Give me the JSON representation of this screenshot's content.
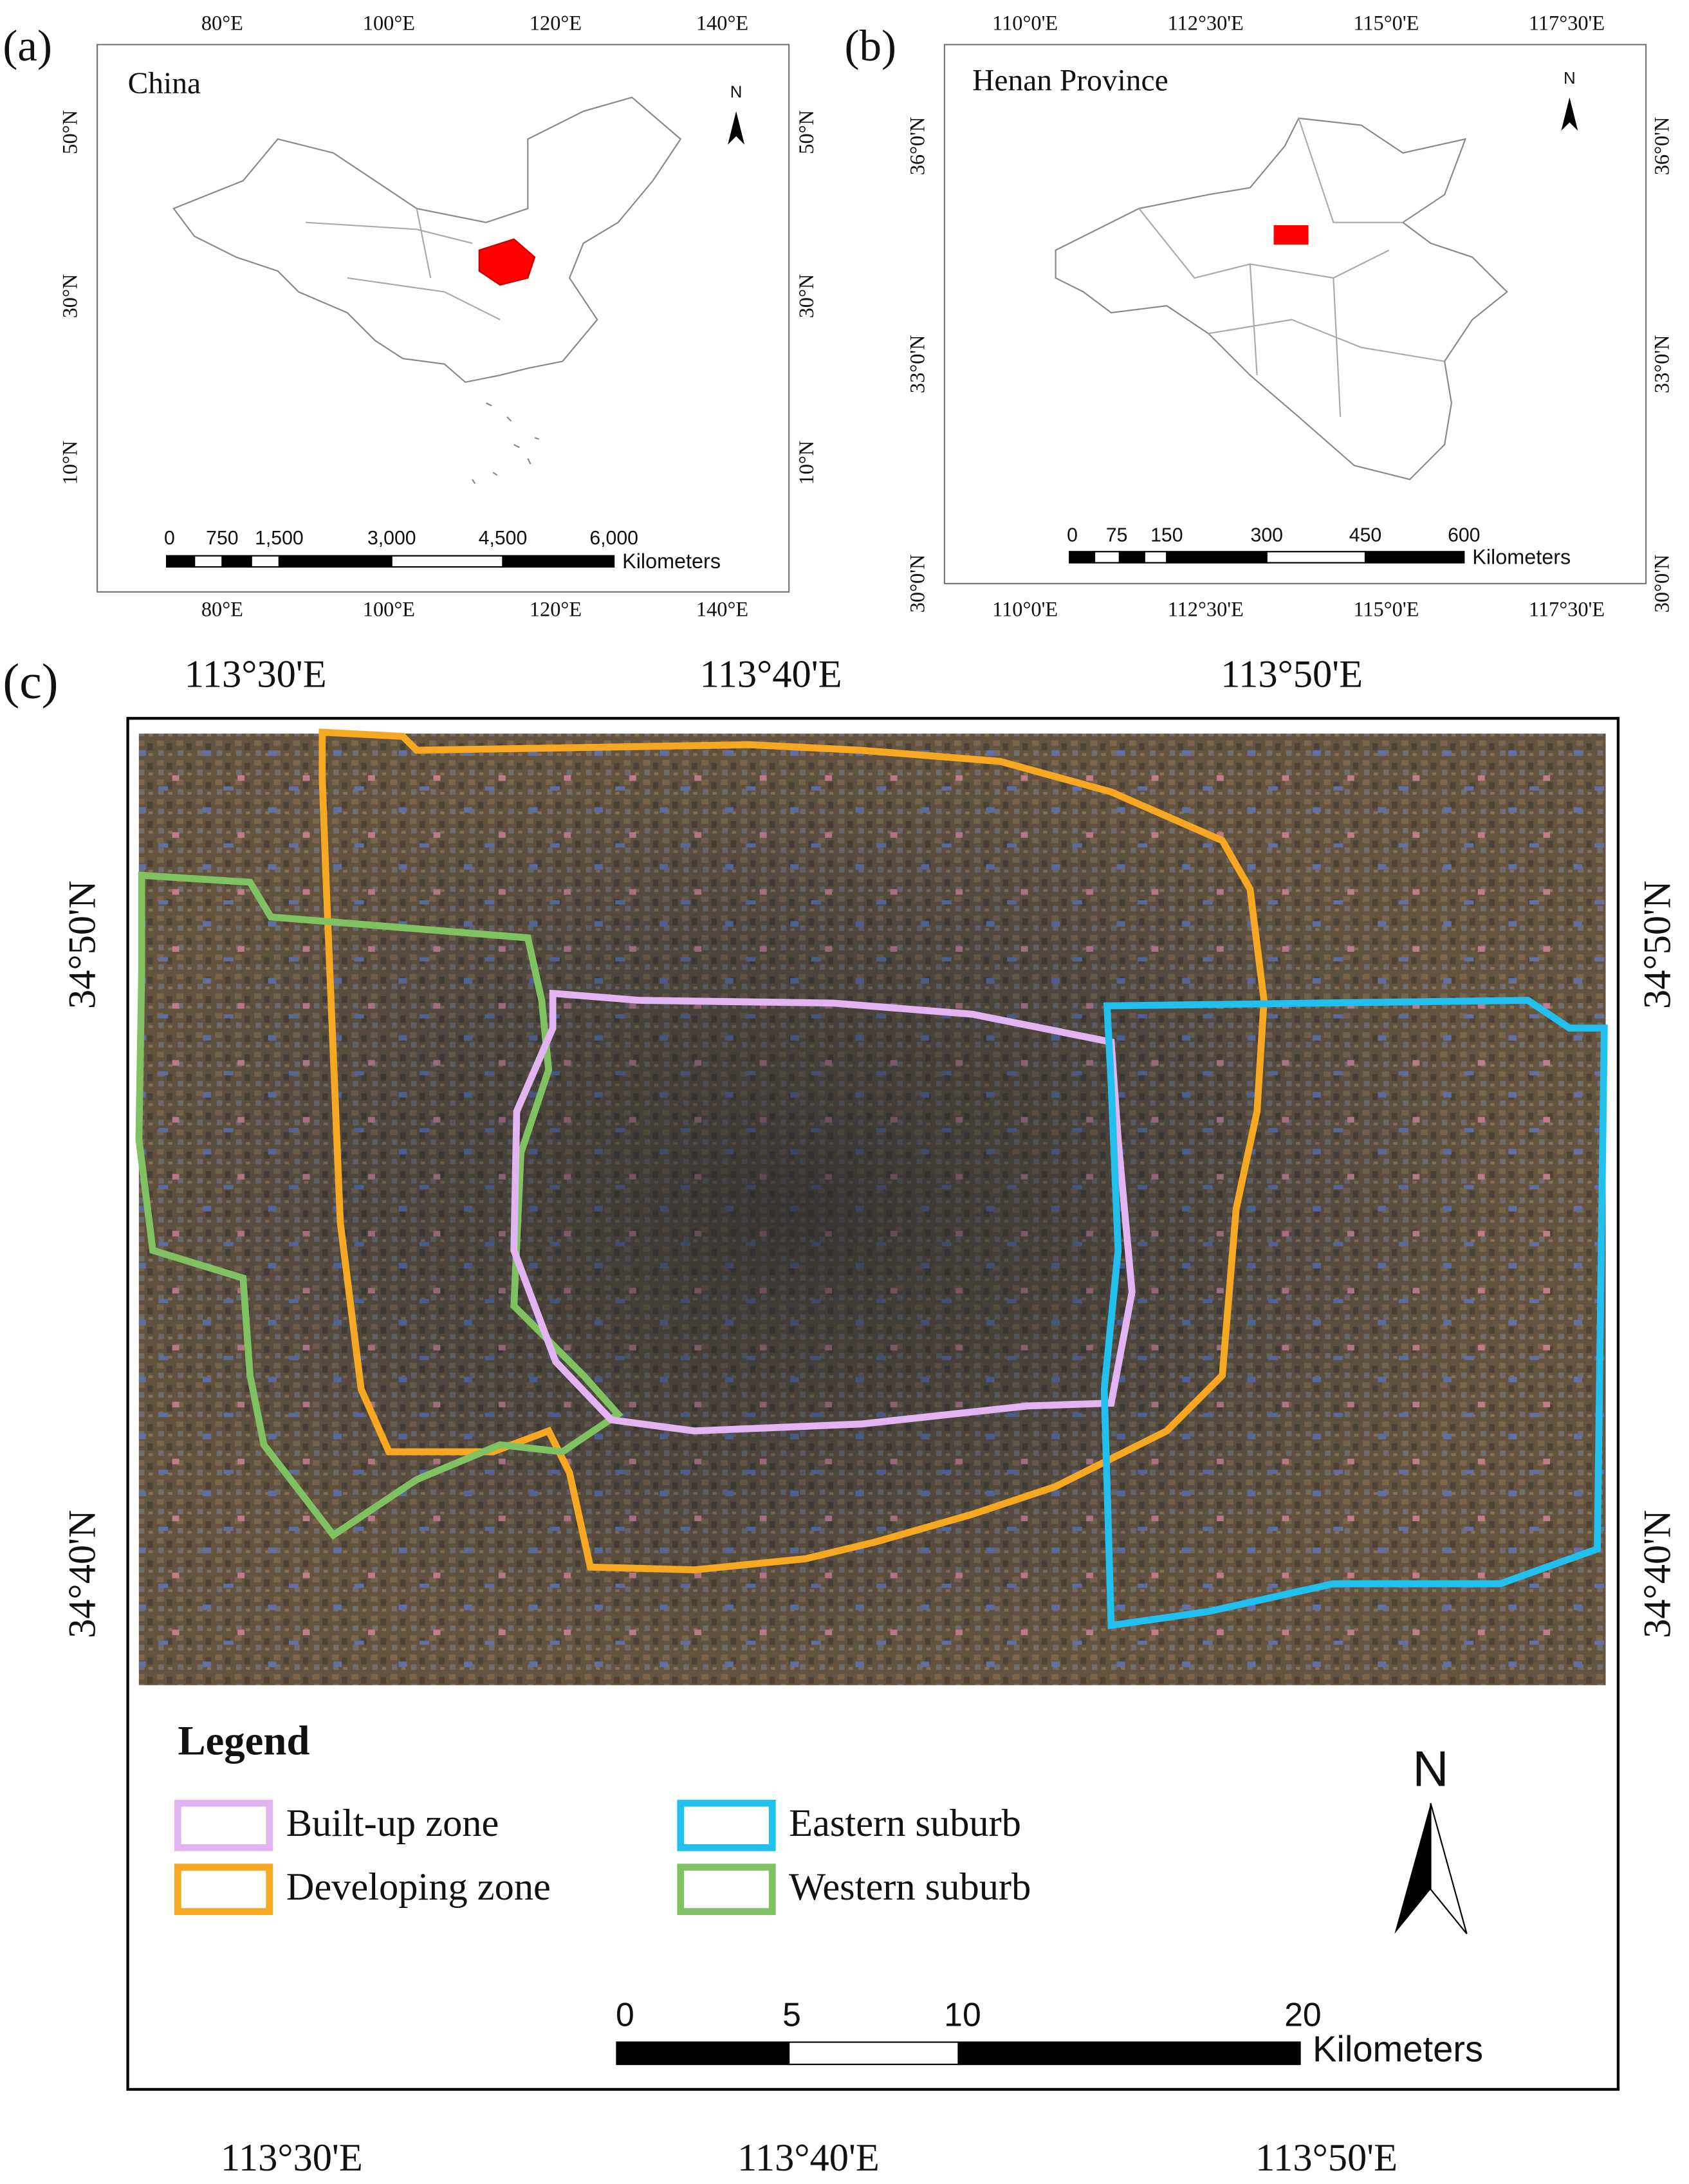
{
  "panel_a": {
    "label": "(a)",
    "title": "China",
    "top_ticks": [
      "80°E",
      "100°E",
      "120°E",
      "140°E"
    ],
    "bottom_ticks": [
      "80°E",
      "100°E",
      "120°E",
      "140°E"
    ],
    "left_ticks": [
      "50°N",
      "30°N",
      "10°N"
    ],
    "right_ticks": [
      "50°N",
      "30°N",
      "10°N"
    ],
    "scale_bar": [
      "0",
      "750",
      "1,500",
      "3,000",
      "4,500",
      "6,000"
    ],
    "scale_unit": "Kilometers",
    "north": "N"
  },
  "panel_b": {
    "label": "(b)",
    "title": "Henan Province",
    "top_ticks": [
      "110°0'E",
      "112°30'E",
      "115°0'E",
      "117°30'E"
    ],
    "bottom_ticks": [
      "110°0'E",
      "112°30'E",
      "115°0'E",
      "117°30'E"
    ],
    "left_ticks": [
      "36°0'N",
      "33°0'N",
      "30°0'N"
    ],
    "right_ticks": [
      "36°0'N",
      "33°0'N",
      "30°0'N"
    ],
    "scale_bar": [
      "0",
      "75",
      "150",
      "300",
      "450",
      "600"
    ],
    "scale_unit": "Kilometers",
    "north": "N"
  },
  "panel_c": {
    "label": "(c)",
    "top_ticks": [
      "113°30'E",
      "113°40'E",
      "113°50'E"
    ],
    "bottom_ticks": [
      "113°30'E",
      "113°40'E",
      "113°50'E"
    ],
    "left_ticks": [
      "34°50'N",
      "34°40'N"
    ],
    "right_ticks": [
      "34°50'N",
      "34°40'N"
    ],
    "legend": {
      "title": "Legend",
      "items": [
        {
          "name": "Built-up zone",
          "color": "#e2b4f2"
        },
        {
          "name": "Developing zone",
          "color": "#f7a823"
        },
        {
          "name": "Eastern suburb",
          "color": "#22c0ef"
        },
        {
          "name": "Western suburb",
          "color": "#80c262"
        }
      ]
    },
    "scale_bar": [
      "0",
      "5",
      "10",
      "20"
    ],
    "scale_unit": "Kilometers",
    "north": "N"
  }
}
